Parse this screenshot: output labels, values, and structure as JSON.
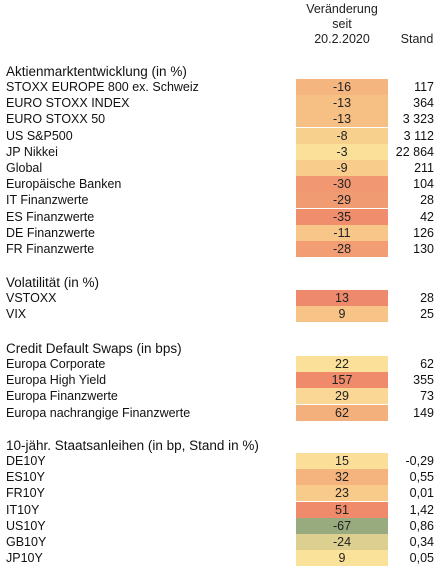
{
  "header": {
    "change_label_1": "Veränderung",
    "change_label_2": "seit",
    "change_label_3": "20.2.2020",
    "stand_label": "Stand"
  },
  "sections": [
    {
      "title": "Aktienmarktentwicklung (in %)",
      "rows": [
        {
          "label": "STOXX EUROPE 800 ex. Schweiz",
          "change": "-16",
          "stand": "117",
          "color": "#f5b57f"
        },
        {
          "label": "EURO STOXX INDEX",
          "change": "-13",
          "stand": "364",
          "color": "#f6bf84"
        },
        {
          "label": "EURO STOXX 50",
          "change": "-13",
          "stand": "3 323",
          "color": "#f6bf84"
        },
        {
          "label": "US S&P500",
          "change": "-8",
          "stand": "3 112",
          "color": "#f8d08e"
        },
        {
          "label": "JP Nikkei",
          "change": "-3",
          "stand": "22 864",
          "color": "#fbe09a"
        },
        {
          "label": "Global",
          "change": "-9",
          "stand": "211",
          "color": "#f8cd8c"
        },
        {
          "label": "Europäische Banken",
          "change": "-30",
          "stand": "104",
          "color": "#f19872"
        },
        {
          "label": "IT Finanzwerte",
          "change": "-29",
          "stand": "28",
          "color": "#f19b73"
        },
        {
          "label": "ES Finanzwerte",
          "change": "-35",
          "stand": "42",
          "color": "#ef8d6c"
        },
        {
          "label": "DE Finanzwerte",
          "change": "-11",
          "stand": "126",
          "color": "#f7c688"
        },
        {
          "label": "FR Finanzwerte",
          "change": "-28",
          "stand": "130",
          "color": "#f29d74"
        }
      ]
    },
    {
      "title": "Volatilität (in %)",
      "rows": [
        {
          "label": "VSTOXX",
          "change": "13",
          "stand": "28",
          "color": "#ee8a6b"
        },
        {
          "label": "VIX",
          "change": "9",
          "stand": "25",
          "color": "#f7c386"
        }
      ]
    },
    {
      "title": "Credit Default Swaps (in bps)",
      "rows": [
        {
          "label": "Europa Corporate",
          "change": "22",
          "stand": "62",
          "color": "#fbe09a"
        },
        {
          "label": "Europa High Yield",
          "change": "157",
          "stand": "355",
          "color": "#ef8a6b"
        },
        {
          "label": "Europa Finanzwerte",
          "change": "29",
          "stand": "73",
          "color": "#fad794"
        },
        {
          "label": "Europa nachrangige Finanzwerte",
          "change": "62",
          "stand": "149",
          "color": "#f4b07c"
        }
      ]
    },
    {
      "title": "10-jähr. Staatsanleihen (in bp, Stand in %)",
      "rows": [
        {
          "label": "DE10Y",
          "change": "15",
          "stand": "-0,29",
          "color": "#fbdf99"
        },
        {
          "label": "ES10Y",
          "change": "32",
          "stand": "0,55",
          "color": "#f5b47e"
        },
        {
          "label": "FR10Y",
          "change": "23",
          "stand": "0,01",
          "color": "#f8cb8b"
        },
        {
          "label": "IT10Y",
          "change": "51",
          "stand": "1,42",
          "color": "#ef8a6b"
        },
        {
          "label": "US10Y",
          "change": "-67",
          "stand": "0,86",
          "color": "#97ab7f"
        },
        {
          "label": "GB10Y",
          "change": "-24",
          "stand": "0,34",
          "color": "#dccf90"
        },
        {
          "label": "JP10Y",
          "change": "9",
          "stand": "0,05",
          "color": "#fbe29b"
        }
      ]
    }
  ]
}
